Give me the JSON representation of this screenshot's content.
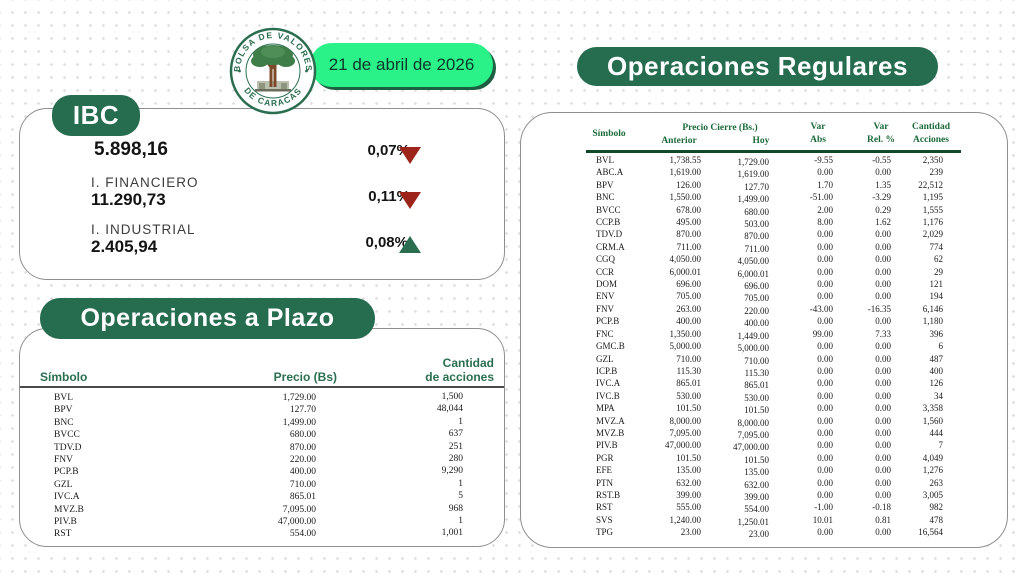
{
  "header": {
    "date": "21 de abril de 2026",
    "logo": {
      "top_text": "BOLSA DE VALORES",
      "bottom_text": "DE CARACAS"
    }
  },
  "ibc": {
    "title": "IBC",
    "rows": [
      {
        "label": "",
        "value": "5.898,16",
        "pct": "0,07%",
        "direction": "down"
      },
      {
        "label": "I. FINANCIERO",
        "value": "11.290,73",
        "pct": "0,11%",
        "direction": "down"
      },
      {
        "label": "I. INDUSTRIAL",
        "value": "2.405,94",
        "pct": "0,08%",
        "direction": "up"
      }
    ]
  },
  "plazo": {
    "title": "Operaciones a Plazo",
    "columns": {
      "symbol": "Símbolo",
      "price": "Precio (Bs)",
      "qty_line1": "Cantidad",
      "qty_line2": "de acciones"
    },
    "rows": [
      [
        "BVL",
        "1,729.00",
        "1,500"
      ],
      [
        "BPV",
        "127.70",
        "48,044"
      ],
      [
        "BNC",
        "1,499.00",
        "1"
      ],
      [
        "BVCC",
        "680.00",
        "637"
      ],
      [
        "TDV.D",
        "870.00",
        "251"
      ],
      [
        "FNV",
        "220.00",
        "280"
      ],
      [
        "PCP.B",
        "400.00",
        "9,290"
      ],
      [
        "GZL",
        "710.00",
        "1"
      ],
      [
        "IVC.A",
        "865.01",
        "5"
      ],
      [
        "MVZ.B",
        "7,095.00",
        "968"
      ],
      [
        "PIV.B",
        "47,000.00",
        "1"
      ],
      [
        "RST",
        "554.00",
        "1,001"
      ]
    ]
  },
  "regulares": {
    "title": "Operaciones Regulares",
    "columns": {
      "symbol": "Símbolo",
      "price_group": "Precio Cierre (Bs.)",
      "anterior": "Anterior",
      "hoy": "Hoy",
      "var_abs_1": "Var",
      "var_abs_2": "Abs",
      "var_rel_1": "Var",
      "var_rel_2": "Rel. %",
      "qty_1": "Cantidad",
      "qty_2": "Acciones"
    },
    "rows": [
      [
        "BVL",
        "1,738.55",
        "1,729.00",
        "-9.55",
        "-0.55",
        "2,350"
      ],
      [
        "ABC.A",
        "1,619.00",
        "1,619.00",
        "0.00",
        "0.00",
        "239"
      ],
      [
        "BPV",
        "126.00",
        "127.70",
        "1.70",
        "1.35",
        "22,512"
      ],
      [
        "BNC",
        "1,550.00",
        "1,499.00",
        "-51.00",
        "-3.29",
        "1,195"
      ],
      [
        "BVCC",
        "678.00",
        "680.00",
        "2.00",
        "0.29",
        "1,555"
      ],
      [
        "CCP.B",
        "495.00",
        "503.00",
        "8.00",
        "1.62",
        "1,176"
      ],
      [
        "TDV.D",
        "870.00",
        "870.00",
        "0.00",
        "0.00",
        "2,029"
      ],
      [
        "CRM.A",
        "711.00",
        "711.00",
        "0.00",
        "0.00",
        "774"
      ],
      [
        "CGQ",
        "4,050.00",
        "4,050.00",
        "0.00",
        "0.00",
        "62"
      ],
      [
        "CCR",
        "6,000.01",
        "6,000.01",
        "0.00",
        "0.00",
        "29"
      ],
      [
        "DOM",
        "696.00",
        "696.00",
        "0.00",
        "0.00",
        "121"
      ],
      [
        "ENV",
        "705.00",
        "705.00",
        "0.00",
        "0.00",
        "194"
      ],
      [
        "FNV",
        "263.00",
        "220.00",
        "-43.00",
        "-16.35",
        "6,146"
      ],
      [
        "PCP.B",
        "400.00",
        "400.00",
        "0.00",
        "0.00",
        "1,180"
      ],
      [
        "FNC",
        "1,350.00",
        "1,449.00",
        "99.00",
        "7.33",
        "396"
      ],
      [
        "GMC.B",
        "5,000.00",
        "5,000.00",
        "0.00",
        "0.00",
        "6"
      ],
      [
        "GZL",
        "710.00",
        "710.00",
        "0.00",
        "0.00",
        "487"
      ],
      [
        "ICP.B",
        "115.30",
        "115.30",
        "0.00",
        "0.00",
        "400"
      ],
      [
        "IVC.A",
        "865.01",
        "865.01",
        "0.00",
        "0.00",
        "126"
      ],
      [
        "IVC.B",
        "530.00",
        "530.00",
        "0.00",
        "0.00",
        "34"
      ],
      [
        "MPA",
        "101.50",
        "101.50",
        "0.00",
        "0.00",
        "3,358"
      ],
      [
        "MVZ.A",
        "8,000.00",
        "8,000.00",
        "0.00",
        "0.00",
        "1,560"
      ],
      [
        "MVZ.B",
        "7,095.00",
        "7,095.00",
        "0.00",
        "0.00",
        "444"
      ],
      [
        "PIV.B",
        "47,000.00",
        "47,000.00",
        "0.00",
        "0.00",
        "7"
      ],
      [
        "PGR",
        "101.50",
        "101.50",
        "0.00",
        "0.00",
        "4,049"
      ],
      [
        "EFE",
        "135.00",
        "135.00",
        "0.00",
        "0.00",
        "1,276"
      ],
      [
        "PTN",
        "632.00",
        "632.00",
        "0.00",
        "0.00",
        "263"
      ],
      [
        "RST.B",
        "399.00",
        "399.00",
        "0.00",
        "0.00",
        "3,005"
      ],
      [
        "RST",
        "555.00",
        "554.00",
        "-1.00",
        "-0.18",
        "982"
      ],
      [
        "SVS",
        "1,240.00",
        "1,250.01",
        "10.01",
        "0.81",
        "478"
      ],
      [
        "TPG",
        "23.00",
        "23.00",
        "0.00",
        "0.00",
        "16,564"
      ]
    ]
  },
  "colors": {
    "dark_green": "#266c4f",
    "bright_green": "#2bf189",
    "table_header_green": "#1b6b3a",
    "down_red": "#9c241b",
    "up_green": "#2a6e4f"
  }
}
